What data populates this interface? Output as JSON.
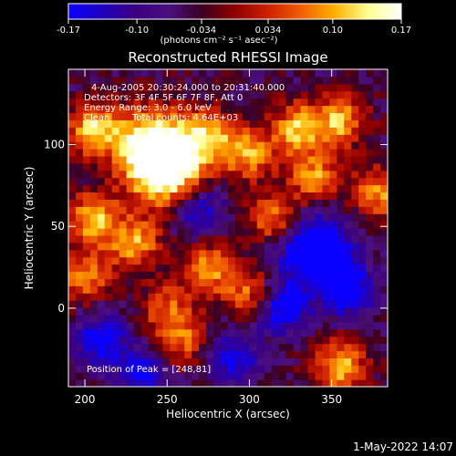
{
  "colors": {
    "background": "#000000",
    "text": "#ffffff",
    "colormap": [
      "#0a00ff",
      "#2000c0",
      "#3a0080",
      "#4a1080",
      "#3a0020",
      "#900000",
      "#d02000",
      "#f06000",
      "#ffb000",
      "#ffff90",
      "#ffffff"
    ]
  },
  "colorbar": {
    "ticks": [
      "-0.17",
      "-0.10",
      "-0.034",
      "0.034",
      "0.10",
      "0.17"
    ],
    "units": "(photons cm⁻² s⁻¹ asec⁻²)"
  },
  "image_info": {
    "time_range": "4-Aug-2005 20:30:24.000 to 20:31:40.000",
    "detectors": "Detectors: 3F 4F 5F 6F 7F 8F, Att 0",
    "energy_range": "Energy Range: 3.0 - 6.0 keV",
    "method": "Clean",
    "total_counts": "Total counts: 4.64E+03",
    "peak": "Position of Peak = [248,81]"
  },
  "footer": {
    "date": "1-May-2022 14:07"
  },
  "chart_data": {
    "type": "heatmap",
    "title": "Reconstructed RHESSI Image",
    "xlabel": "Heliocentric X (arcsec)",
    "ylabel": "Heliocentric Y (arcsec)",
    "xlim": [
      190,
      384
    ],
    "ylim": [
      -48,
      146
    ],
    "xticks": [
      "200",
      "250",
      "300",
      "350"
    ],
    "yticks": [
      "0",
      "50",
      "100"
    ],
    "xtick_values": [
      200,
      250,
      300,
      350
    ],
    "ytick_values": [
      0,
      50,
      100
    ],
    "value_range": [
      -0.17,
      0.17
    ],
    "peak_position": [
      248,
      81
    ],
    "hot_regions": [
      {
        "x": 250,
        "y": 85,
        "value": 0.17
      },
      {
        "x": 240,
        "y": 100,
        "value": 0.14
      },
      {
        "x": 205,
        "y": 110,
        "value": 0.12
      },
      {
        "x": 275,
        "y": 105,
        "value": 0.1
      },
      {
        "x": 205,
        "y": 55,
        "value": 0.11
      },
      {
        "x": 230,
        "y": 40,
        "value": 0.1
      },
      {
        "x": 300,
        "y": 95,
        "value": 0.1
      },
      {
        "x": 330,
        "y": 110,
        "value": 0.11
      },
      {
        "x": 340,
        "y": 80,
        "value": 0.09
      },
      {
        "x": 315,
        "y": 55,
        "value": 0.09
      },
      {
        "x": 275,
        "y": 25,
        "value": 0.09
      },
      {
        "x": 355,
        "y": 115,
        "value": 0.1
      },
      {
        "x": 378,
        "y": 70,
        "value": 0.09
      },
      {
        "x": 200,
        "y": 20,
        "value": 0.08
      },
      {
        "x": 300,
        "y": 10,
        "value": 0.07
      },
      {
        "x": 355,
        "y": -35,
        "value": 0.11
      },
      {
        "x": 250,
        "y": 0,
        "value": 0.06
      },
      {
        "x": 260,
        "y": -20,
        "value": 0.06
      }
    ],
    "cold_regions": [
      {
        "x": 340,
        "y": 35,
        "value": -0.15
      },
      {
        "x": 320,
        "y": 0,
        "value": -0.1
      },
      {
        "x": 210,
        "y": -20,
        "value": -0.1
      },
      {
        "x": 360,
        "y": 10,
        "value": -0.09
      },
      {
        "x": 290,
        "y": -30,
        "value": -0.08
      },
      {
        "x": 270,
        "y": 60,
        "value": -0.08
      },
      {
        "x": 235,
        "y": -40,
        "value": -0.08
      }
    ]
  }
}
